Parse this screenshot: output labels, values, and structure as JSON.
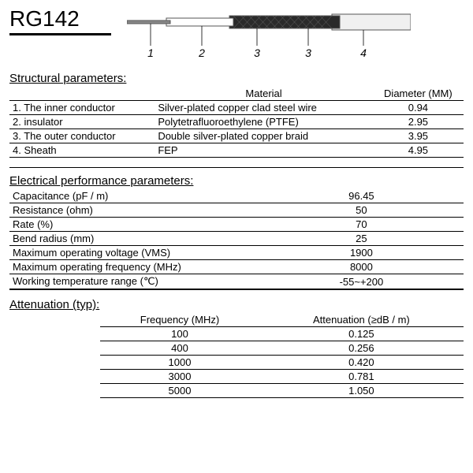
{
  "title": "RG142",
  "diagram": {
    "labels": [
      "1",
      "2",
      "3",
      "3",
      "4"
    ],
    "colors": {
      "conductor": "#888888",
      "insulator": "#ffffff",
      "braid": "#2a2a2a",
      "sheath": "#f0f0f0",
      "stroke": "#555555"
    }
  },
  "structural": {
    "heading": "Structural parameters:",
    "columns": [
      "",
      "Material",
      "Diameter (MM)"
    ],
    "rows": [
      {
        "label": "1. The inner conductor",
        "material": "Silver-plated copper clad steel wire",
        "diameter": "0.94"
      },
      {
        "label": "2. insulator",
        "material": "Polytetrafluoroethylene (PTFE)",
        "diameter": "2.95"
      },
      {
        "label": "3. The outer conductor",
        "material": "Double silver-plated copper braid",
        "diameter": "3.95"
      },
      {
        "label": "4. Sheath",
        "material": "FEP",
        "diameter": "4.95"
      }
    ]
  },
  "electrical": {
    "heading": "Electrical performance parameters:",
    "rows": [
      {
        "param": "Capacitance (pF / m)",
        "value": "96.45"
      },
      {
        "param": "Resistance (ohm)",
        "value": "50"
      },
      {
        "param": "Rate (%)",
        "value": "70"
      },
      {
        "param": "Bend radius (mm)",
        "value": "25"
      },
      {
        "param": "Maximum operating voltage (VMS)",
        "value": "1900"
      },
      {
        "param": "Maximum operating frequency (MHz)",
        "value": "8000"
      },
      {
        "param": "Working temperature range (℃)",
        "value": "-55~+200"
      }
    ]
  },
  "attenuation": {
    "heading": "Attenuation (typ):",
    "columns": [
      "Frequency (MHz)",
      "Attenuation (≥dB / m)"
    ],
    "rows": [
      {
        "freq": "100",
        "atten": "0.125"
      },
      {
        "freq": "400",
        "atten": "0.256"
      },
      {
        "freq": "1000",
        "atten": "0.420"
      },
      {
        "freq": "3000",
        "atten": "0.781"
      },
      {
        "freq": "5000",
        "atten": "1.050"
      }
    ]
  }
}
